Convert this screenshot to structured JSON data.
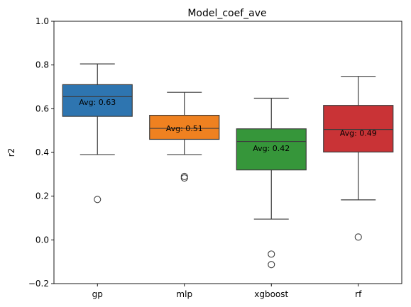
{
  "chart_data": {
    "type": "box",
    "title": "Model_coef_ave",
    "xlabel": "",
    "ylabel": "r2",
    "ylim": [
      -0.2,
      1.0
    ],
    "yticks": [
      "−0.2",
      "0.0",
      "0.2",
      "0.4",
      "0.6",
      "0.8",
      "1.0"
    ],
    "ytick_values": [
      -0.2,
      0.0,
      0.2,
      0.4,
      0.6,
      0.8,
      1.0
    ],
    "categories": [
      "gp",
      "mlp",
      "xgboost",
      "rf"
    ],
    "boxes": [
      {
        "category": "gp",
        "whisker_low": 0.39,
        "q1": 0.565,
        "median": 0.655,
        "q3": 0.71,
        "whisker_high": 0.805,
        "outliers": [
          0.185
        ],
        "avg_label": "Avg: 0.63",
        "color": "#2e75b0"
      },
      {
        "category": "mlp",
        "whisker_low": 0.39,
        "q1": 0.46,
        "median": 0.51,
        "q3": 0.57,
        "whisker_high": 0.675,
        "outliers": [
          0.29,
          0.283
        ],
        "avg_label": "Avg: 0.51",
        "color": "#ef8120"
      },
      {
        "category": "xgboost",
        "whisker_low": 0.095,
        "q1": 0.32,
        "median": 0.45,
        "q3": 0.508,
        "whisker_high": 0.648,
        "outliers": [
          -0.065,
          -0.113
        ],
        "avg_label": "Avg: 0.42",
        "color": "#36963a"
      },
      {
        "category": "rf",
        "whisker_low": 0.183,
        "q1": 0.402,
        "median": 0.505,
        "q3": 0.615,
        "whisker_high": 0.748,
        "outliers": [
          0.013
        ],
        "avg_label": "Avg: 0.49",
        "color": "#c93336"
      }
    ],
    "avg_values": [
      0.63,
      0.51,
      0.42,
      0.49
    ],
    "grid": false,
    "legend": "none"
  }
}
